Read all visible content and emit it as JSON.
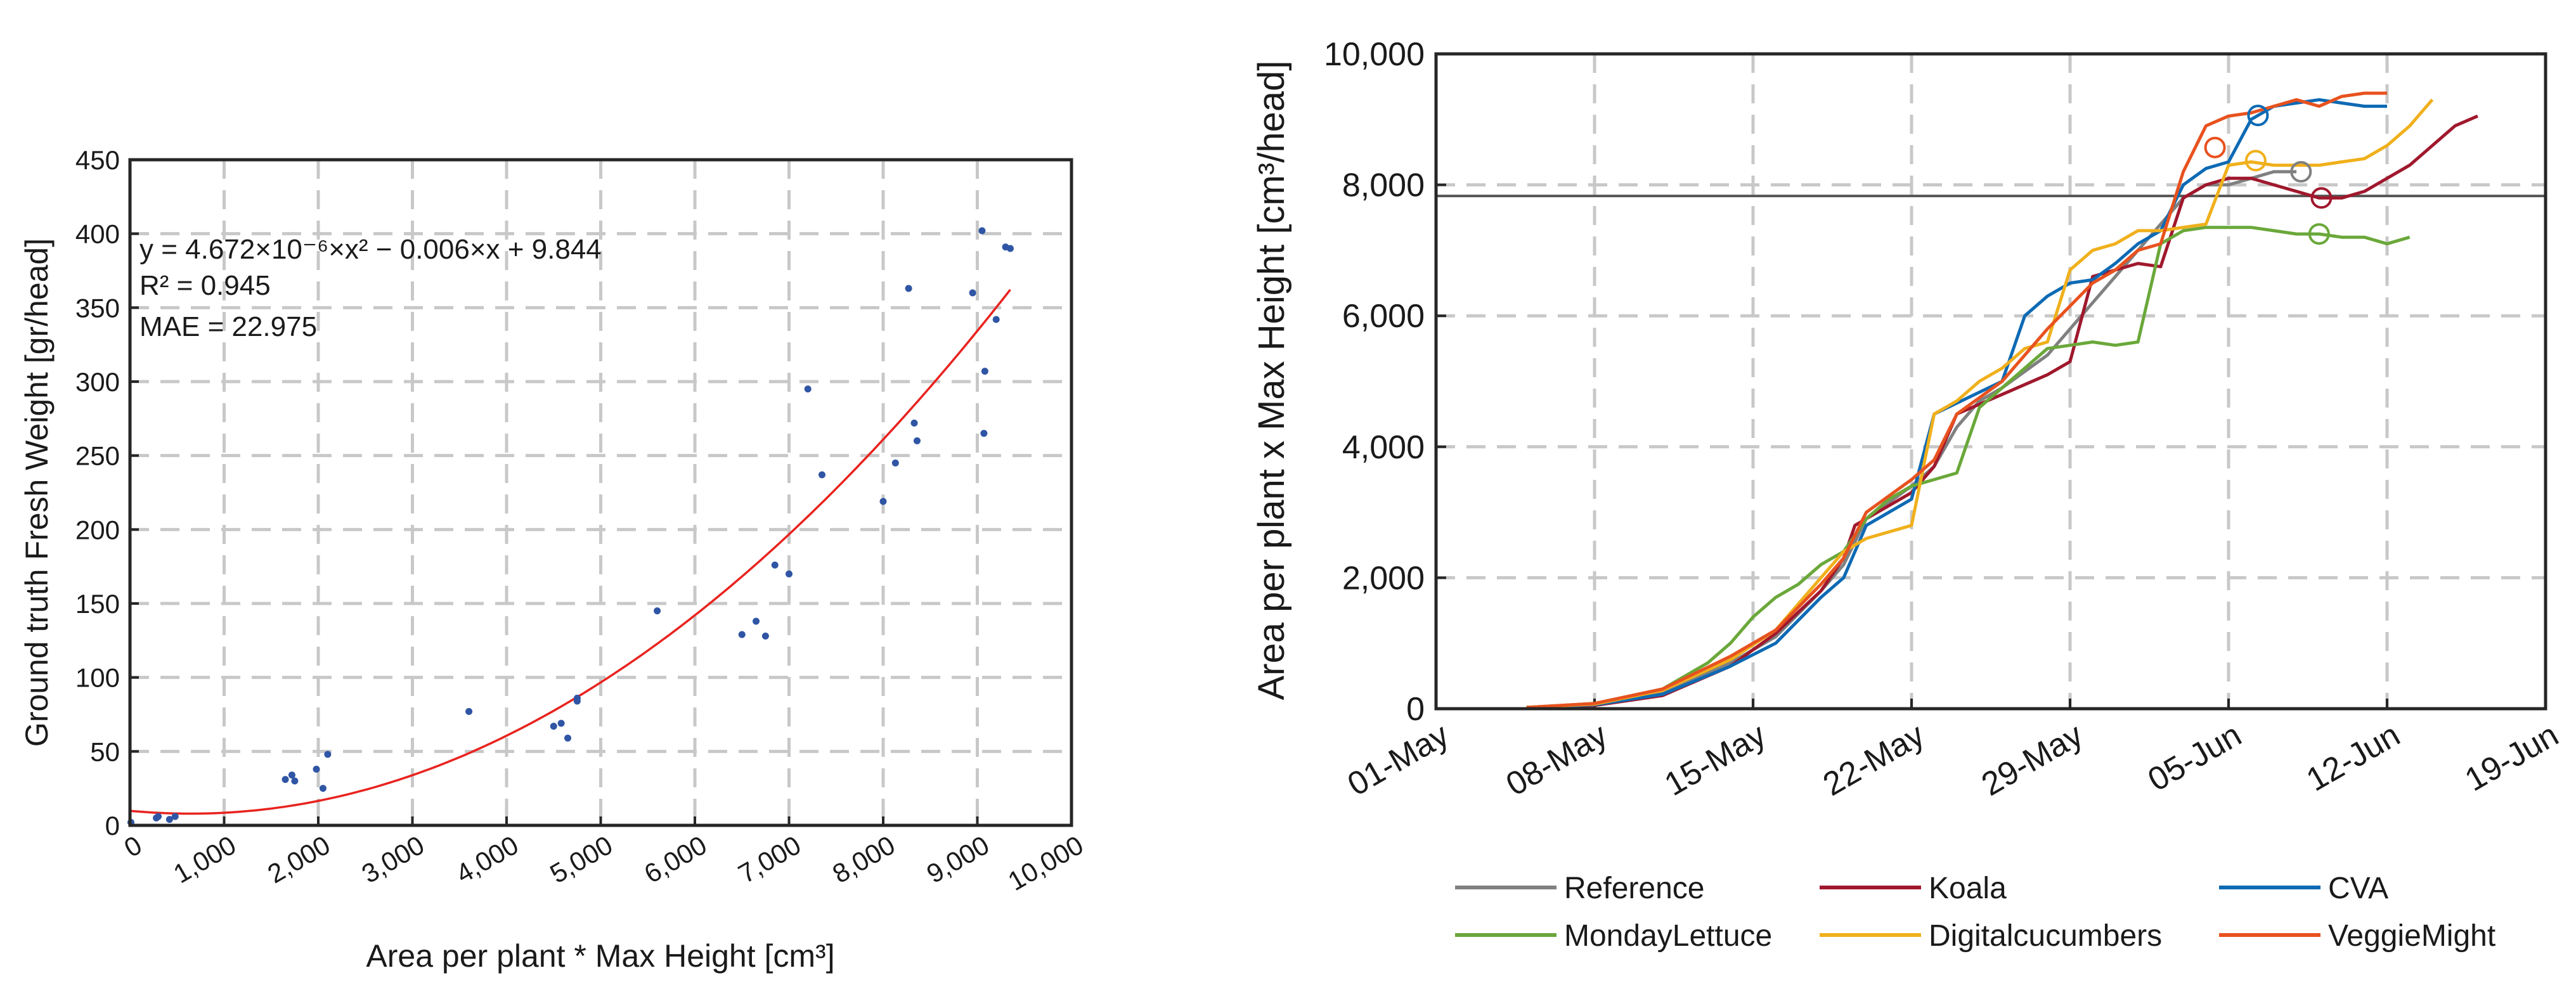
{
  "chart_data": [
    {
      "type": "scatter",
      "xlabel": "Area per plant * Max Height [cm³]",
      "ylabel": "Ground truth Fresh Weight [gr/head]",
      "xlim": [
        0,
        10000
      ],
      "ylim": [
        0,
        450
      ],
      "x_ticks": [
        0,
        1000,
        2000,
        3000,
        4000,
        5000,
        6000,
        7000,
        8000,
        9000,
        10000
      ],
      "x_tick_labels": [
        "0",
        "1,000",
        "2,000",
        "3,000",
        "4,000",
        "5,000",
        "6,000",
        "7,000",
        "8,000",
        "9,000",
        "10,000"
      ],
      "y_ticks": [
        0,
        50,
        100,
        150,
        200,
        250,
        300,
        350,
        400,
        450
      ],
      "y_tick_labels": [
        "0",
        "50",
        "100",
        "150",
        "200",
        "250",
        "300",
        "350",
        "400",
        "450"
      ],
      "grid": true,
      "annotations": {
        "equation": "y = 4.672×10⁻⁶×x² − 0.006×x + 9.844",
        "r2": "R² = 0.945",
        "mae": "MAE = 22.975"
      },
      "fit": {
        "a": 4.672e-06,
        "b": -0.006,
        "c": 9.844,
        "x_range": [
          0,
          9350
        ],
        "color": "#e8231f"
      },
      "points_color": "#2f55a4",
      "points": [
        [
          10,
          2
        ],
        [
          280,
          5
        ],
        [
          300,
          6
        ],
        [
          420,
          4
        ],
        [
          480,
          6
        ],
        [
          1650,
          31
        ],
        [
          1720,
          34
        ],
        [
          1750,
          30
        ],
        [
          1980,
          38
        ],
        [
          2050,
          25
        ],
        [
          2100,
          48
        ],
        [
          3600,
          77
        ],
        [
          4500,
          67
        ],
        [
          4580,
          69
        ],
        [
          4650,
          59
        ],
        [
          4750,
          86
        ],
        [
          4750,
          84
        ],
        [
          5600,
          145
        ],
        [
          6500,
          129
        ],
        [
          6650,
          138
        ],
        [
          6750,
          128
        ],
        [
          6850,
          176
        ],
        [
          7000,
          170
        ],
        [
          7200,
          295
        ],
        [
          7350,
          237
        ],
        [
          8000,
          219
        ],
        [
          8130,
          245
        ],
        [
          8270,
          363
        ],
        [
          8330,
          272
        ],
        [
          8360,
          260
        ],
        [
          8950,
          360
        ],
        [
          9050,
          402
        ],
        [
          9080,
          307
        ],
        [
          9070,
          265
        ],
        [
          9200,
          342
        ],
        [
          9300,
          391
        ],
        [
          9350,
          390
        ]
      ]
    },
    {
      "type": "line",
      "ylabel": "Area per plant x Max Height [cm³/head]",
      "x_tick_labels": [
        "01-May",
        "08-May",
        "15-May",
        "22-May",
        "29-May",
        "05-Jun",
        "12-Jun",
        "19-Jun"
      ],
      "xlim": [
        0,
        49
      ],
      "x_unit": "days from 01-May",
      "ylim": [
        0,
        10000
      ],
      "y_ticks": [
        0,
        2000,
        4000,
        6000,
        8000,
        10000
      ],
      "y_tick_labels": [
        "0",
        "2,000",
        "4,000",
        "6,000",
        "8,000",
        "10,000"
      ],
      "grid": true,
      "hline": {
        "y": 7830,
        "color": "#555555"
      },
      "legend_position": "bottom",
      "series": [
        {
          "name": "Reference",
          "color": "#808080",
          "points": [
            [
              4,
              20
            ],
            [
              7,
              70
            ],
            [
              10,
              250
            ],
            [
              13,
              700
            ],
            [
              15,
              1100
            ],
            [
              17,
              1800
            ],
            [
              18,
              2200
            ],
            [
              19,
              2900
            ],
            [
              21,
              3400
            ],
            [
              22,
              3700
            ],
            [
              23,
              4300
            ],
            [
              24,
              4700
            ],
            [
              25,
              4900
            ],
            [
              27,
              5400
            ],
            [
              29,
              6200
            ],
            [
              30,
              6600
            ],
            [
              31,
              7000
            ],
            [
              32,
              7400
            ],
            [
              33,
              7800
            ],
            [
              34,
              8000
            ],
            [
              35,
              8000
            ],
            [
              36,
              8100
            ],
            [
              37,
              8200
            ],
            [
              38,
              8200
            ]
          ],
          "marker": [
            38.2,
            8200
          ]
        },
        {
          "name": "Koala",
          "color": "#a0182d",
          "points": [
            [
              4,
              20
            ],
            [
              7,
              50
            ],
            [
              10,
              200
            ],
            [
              13,
              650
            ],
            [
              15,
              1150
            ],
            [
              17,
              1800
            ],
            [
              18,
              2300
            ],
            [
              18.5,
              2800
            ],
            [
              19,
              2900
            ],
            [
              21,
              3300
            ],
            [
              22,
              3700
            ],
            [
              23,
              4500
            ],
            [
              25,
              4800
            ],
            [
              27,
              5100
            ],
            [
              28,
              5300
            ],
            [
              29,
              6600
            ],
            [
              30,
              6700
            ],
            [
              31,
              6800
            ],
            [
              32,
              6750
            ],
            [
              33,
              7800
            ],
            [
              34,
              8000
            ],
            [
              35,
              8100
            ],
            [
              36,
              8100
            ],
            [
              37,
              8000
            ],
            [
              38,
              7900
            ],
            [
              39,
              7800
            ],
            [
              40,
              7800
            ],
            [
              41,
              7900
            ],
            [
              42,
              8100
            ],
            [
              43,
              8300
            ],
            [
              44,
              8600
            ],
            [
              45,
              8900
            ],
            [
              46,
              9050
            ]
          ],
          "marker": [
            39.1,
            7800
          ]
        },
        {
          "name": "CVA",
          "color": "#0d6ab4",
          "points": [
            [
              4,
              20
            ],
            [
              7,
              60
            ],
            [
              10,
              220
            ],
            [
              13,
              650
            ],
            [
              15,
              1000
            ],
            [
              17,
              1700
            ],
            [
              18,
              2000
            ],
            [
              19,
              2800
            ],
            [
              21,
              3200
            ],
            [
              22,
              4500
            ],
            [
              25,
              5000
            ],
            [
              26,
              6000
            ],
            [
              27,
              6300
            ],
            [
              28,
              6500
            ],
            [
              29,
              6550
            ],
            [
              30,
              6800
            ],
            [
              31,
              7100
            ],
            [
              32,
              7300
            ],
            [
              33,
              8000
            ],
            [
              34,
              8250
            ],
            [
              35,
              8350
            ],
            [
              36,
              9000
            ],
            [
              37,
              9200
            ],
            [
              38,
              9250
            ],
            [
              39,
              9300
            ],
            [
              40,
              9250
            ],
            [
              41,
              9200
            ],
            [
              42,
              9200
            ]
          ],
          "marker": [
            36.3,
            9060
          ]
        },
        {
          "name": "MondayLettuce",
          "color": "#6aa83a",
          "points": [
            [
              4,
              20
            ],
            [
              7,
              80
            ],
            [
              10,
              300
            ],
            [
              12,
              700
            ],
            [
              13,
              1000
            ],
            [
              14,
              1400
            ],
            [
              15,
              1700
            ],
            [
              16,
              1900
            ],
            [
              17,
              2200
            ],
            [
              18,
              2400
            ],
            [
              19,
              2900
            ],
            [
              20,
              3200
            ],
            [
              21,
              3400
            ],
            [
              22,
              3500
            ],
            [
              23,
              3600
            ],
            [
              24,
              4600
            ],
            [
              25,
              4900
            ],
            [
              26,
              5200
            ],
            [
              27,
              5500
            ],
            [
              28,
              5550
            ],
            [
              29,
              5600
            ],
            [
              30,
              5550
            ],
            [
              31,
              5600
            ],
            [
              32,
              7100
            ],
            [
              33,
              7300
            ],
            [
              34,
              7350
            ],
            [
              35,
              7350
            ],
            [
              36,
              7350
            ],
            [
              37,
              7300
            ],
            [
              38,
              7250
            ],
            [
              39,
              7250
            ],
            [
              40,
              7200
            ],
            [
              41,
              7200
            ],
            [
              42,
              7100
            ],
            [
              43,
              7200
            ]
          ],
          "marker": [
            39.0,
            7250
          ]
        },
        {
          "name": "Digitalcucumbers",
          "color": "#f0b01c",
          "points": [
            [
              4,
              20
            ],
            [
              7,
              70
            ],
            [
              10,
              280
            ],
            [
              13,
              750
            ],
            [
              15,
              1200
            ],
            [
              17,
              2000
            ],
            [
              18,
              2400
            ],
            [
              19,
              2600
            ],
            [
              20,
              2700
            ],
            [
              21,
              2800
            ],
            [
              22,
              4500
            ],
            [
              23,
              4700
            ],
            [
              24,
              5000
            ],
            [
              25,
              5200
            ],
            [
              26,
              5500
            ],
            [
              27,
              5600
            ],
            [
              28,
              6700
            ],
            [
              29,
              7000
            ],
            [
              30,
              7100
            ],
            [
              31,
              7300
            ],
            [
              32,
              7300
            ],
            [
              33,
              7350
            ],
            [
              34,
              7400
            ],
            [
              35,
              8300
            ],
            [
              36,
              8350
            ],
            [
              37,
              8300
            ],
            [
              38,
              8300
            ],
            [
              39,
              8300
            ],
            [
              40,
              8350
            ],
            [
              41,
              8400
            ],
            [
              42,
              8600
            ],
            [
              43,
              8900
            ],
            [
              44,
              9300
            ]
          ],
          "marker": [
            36.2,
            8370
          ]
        },
        {
          "name": "VeggieMight",
          "color": "#e8521f",
          "points": [
            [
              4,
              20
            ],
            [
              7,
              80
            ],
            [
              10,
              300
            ],
            [
              13,
              800
            ],
            [
              15,
              1200
            ],
            [
              17,
              1900
            ],
            [
              18,
              2300
            ],
            [
              19,
              3000
            ],
            [
              21,
              3500
            ],
            [
              22,
              3800
            ],
            [
              23,
              4500
            ],
            [
              25,
              5000
            ],
            [
              27,
              5800
            ],
            [
              29,
              6500
            ],
            [
              30,
              6700
            ],
            [
              31,
              7000
            ],
            [
              32,
              7100
            ],
            [
              33,
              8200
            ],
            [
              34,
              8900
            ],
            [
              35,
              9050
            ],
            [
              36,
              9100
            ],
            [
              37,
              9200
            ],
            [
              38,
              9300
            ],
            [
              39,
              9200
            ],
            [
              40,
              9350
            ],
            [
              41,
              9400
            ],
            [
              42,
              9400
            ]
          ],
          "marker": [
            34.4,
            8570
          ]
        }
      ]
    }
  ]
}
